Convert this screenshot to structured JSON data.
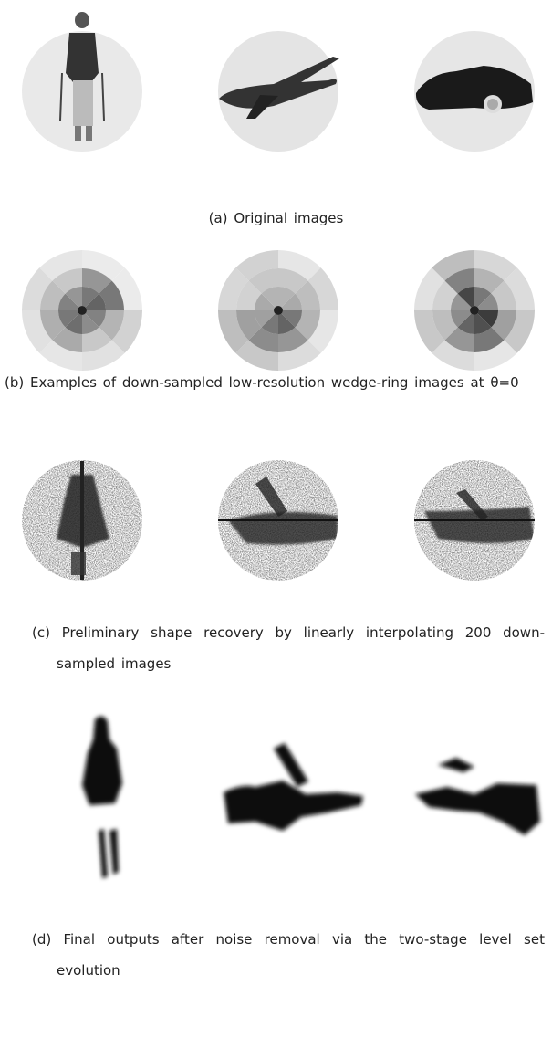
{
  "panels": [
    {
      "label": "(a)",
      "caption": "Original images"
    },
    {
      "label": "(b)",
      "caption": "Examples of down-sampled low-resolution wedge-ring images at θ=0"
    },
    {
      "label": "(c)",
      "caption": "Preliminary shape recovery by linearly interpolating 200 down-sampled images"
    },
    {
      "label": "(d)",
      "caption": "Final outputs after noise removal via the two-stage level set evolution"
    }
  ]
}
